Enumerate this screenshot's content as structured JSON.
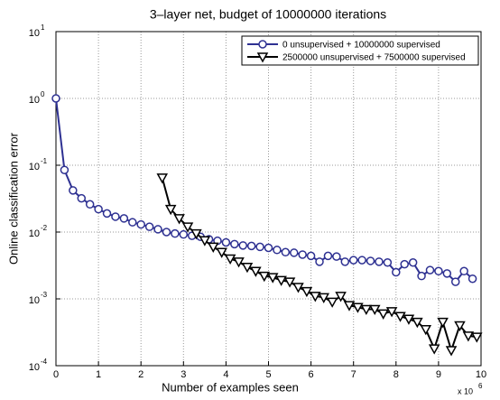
{
  "chart_data": {
    "type": "line",
    "title": "3–layer net, budget of 10000000 iterations",
    "x_label": "Number of examples seen",
    "y_label": "Online classification error",
    "x_multiplier": {
      "base": "x 10",
      "exponent": "6"
    },
    "xlim": [
      0,
      10
    ],
    "xticks": [
      0,
      1,
      2,
      3,
      4,
      5,
      6,
      7,
      8,
      9,
      10
    ],
    "ylim": [
      0.0001,
      10
    ],
    "yscale": "log",
    "yticks": [
      {
        "value": 0.0001,
        "label": "10",
        "exponent": "-4"
      },
      {
        "value": 0.001,
        "label": "10",
        "exponent": "-3"
      },
      {
        "value": 0.01,
        "label": "10",
        "exponent": "-2"
      },
      {
        "value": 0.1,
        "label": "10",
        "exponent": "-1"
      },
      {
        "value": 1,
        "label": "10",
        "exponent": "0"
      },
      {
        "value": 10,
        "label": "10",
        "exponent": "1"
      }
    ],
    "grid": true,
    "legend": "upper right",
    "series": [
      {
        "name": "0 unsupervised + 10000000 supervised",
        "color": "#2e3192",
        "marker": "circle",
        "x": [
          0,
          0.2,
          0.4,
          0.6,
          0.8,
          1.0,
          1.2,
          1.4,
          1.6,
          1.8,
          2.0,
          2.2,
          2.4,
          2.6,
          2.8,
          3.0,
          3.2,
          3.4,
          3.6,
          3.8,
          4.0,
          4.2,
          4.4,
          4.6,
          4.8,
          5.0,
          5.2,
          5.4,
          5.6,
          5.8,
          6.0,
          6.2,
          6.4,
          6.6,
          6.8,
          7.0,
          7.2,
          7.4,
          7.6,
          7.8,
          8.0,
          8.2,
          8.4,
          8.6,
          8.8,
          9.0,
          9.2,
          9.4,
          9.6,
          9.8
        ],
        "values": [
          1,
          0.085,
          0.042,
          0.032,
          0.026,
          0.022,
          0.019,
          0.017,
          0.016,
          0.014,
          0.013,
          0.012,
          0.011,
          0.01,
          0.0095,
          0.0092,
          0.0088,
          0.0085,
          0.0078,
          0.0074,
          0.007,
          0.0066,
          0.0063,
          0.0062,
          0.006,
          0.0058,
          0.0054,
          0.005,
          0.0049,
          0.0046,
          0.0044,
          0.0036,
          0.0044,
          0.0043,
          0.0036,
          0.0038,
          0.0038,
          0.0037,
          0.0036,
          0.0035,
          0.0025,
          0.0033,
          0.0035,
          0.0022,
          0.0027,
          0.0026,
          0.0024,
          0.0018,
          0.0026,
          0.002
        ]
      },
      {
        "name": "2500000 unsupervised + 7500000 supervised",
        "color": "#000000",
        "marker": "triangle-down",
        "x": [
          2.5,
          2.7,
          2.9,
          3.1,
          3.3,
          3.5,
          3.7,
          3.9,
          4.1,
          4.3,
          4.5,
          4.7,
          4.9,
          5.1,
          5.3,
          5.5,
          5.7,
          5.9,
          6.1,
          6.3,
          6.5,
          6.7,
          6.9,
          7.1,
          7.3,
          7.5,
          7.7,
          7.9,
          8.1,
          8.3,
          8.5,
          8.7,
          8.9,
          9.1,
          9.3,
          9.5,
          9.7,
          9.9
        ],
        "values": [
          0.065,
          0.022,
          0.016,
          0.012,
          0.0095,
          0.0075,
          0.006,
          0.005,
          0.004,
          0.0036,
          0.003,
          0.0026,
          0.0022,
          0.0021,
          0.0019,
          0.0018,
          0.0015,
          0.0013,
          0.0011,
          0.00105,
          0.0009,
          0.0011,
          0.0008,
          0.00075,
          0.0007,
          0.0007,
          0.0006,
          0.00065,
          0.00055,
          0.0005,
          0.00045,
          0.00035,
          0.00018,
          0.00045,
          0.00017,
          0.0004,
          0.00028,
          0.00027
        ]
      }
    ]
  }
}
